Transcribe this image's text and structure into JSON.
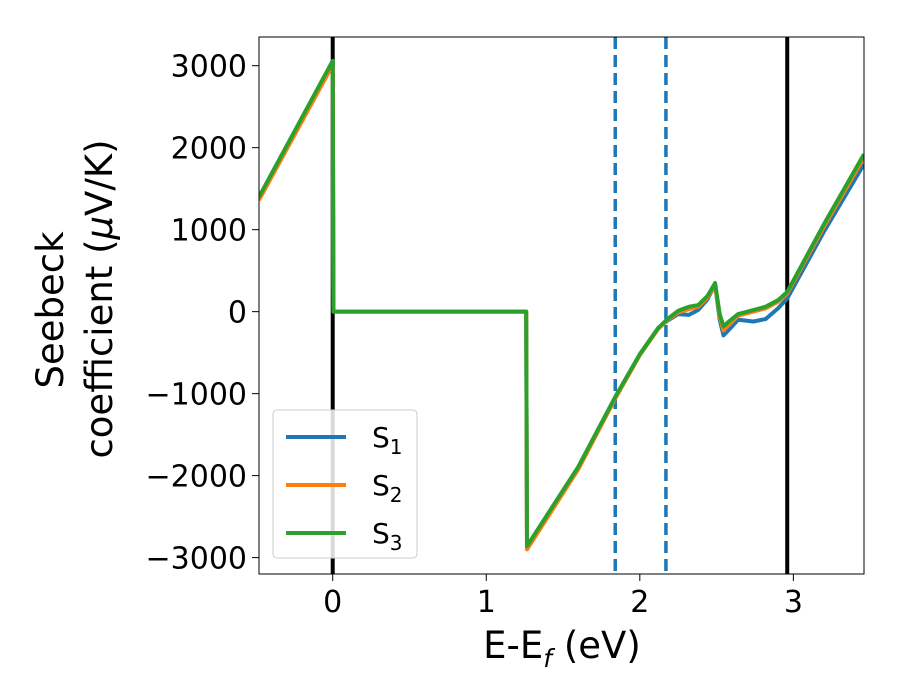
{
  "chart_data": {
    "type": "line",
    "xlabel_main": "E-E",
    "xlabel_sub": "f",
    "xlabel_unit": " (eV)",
    "ylabel_line1": "Seebeck",
    "ylabel_line2_prefix": "coefficient  (",
    "ylabel_mu": "μ",
    "ylabel_line2_suffix": "V/K)",
    "xlim": [
      -0.48,
      3.46
    ],
    "ylim": [
      -3200,
      3350
    ],
    "xticks": [
      0,
      1,
      2,
      3
    ],
    "xtick_labels": [
      "0",
      "1",
      "2",
      "3"
    ],
    "yticks": [
      3000,
      2000,
      1000,
      0,
      -1000,
      -2000,
      -3000
    ],
    "ytick_labels": [
      "3000",
      "2000",
      "1000",
      "0",
      "−1000",
      "−2000",
      "−3000"
    ],
    "legend_position": "lower-left",
    "vlines": [
      {
        "x": 0.0,
        "style": "solid",
        "color": "#000000"
      },
      {
        "x": 2.96,
        "style": "solid",
        "color": "#000000"
      },
      {
        "x": 1.84,
        "style": "dashed",
        "color": "#1f77b4"
      },
      {
        "x": 2.17,
        "style": "dashed",
        "color": "#1f77b4"
      }
    ],
    "series": [
      {
        "name": "S",
        "sub": "1",
        "color": "#1f77b4",
        "points": [
          [
            -0.48,
            1380
          ],
          [
            0.0,
            3030
          ],
          [
            0.005,
            0
          ],
          [
            1.26,
            0
          ],
          [
            1.265,
            -2880
          ],
          [
            1.6,
            -1900
          ],
          [
            1.84,
            -1050
          ],
          [
            2.0,
            -520
          ],
          [
            2.12,
            -200
          ],
          [
            2.18,
            -110
          ],
          [
            2.25,
            -30
          ],
          [
            2.32,
            -40
          ],
          [
            2.38,
            20
          ],
          [
            2.44,
            150
          ],
          [
            2.49,
            330
          ],
          [
            2.52,
            -100
          ],
          [
            2.545,
            -290
          ],
          [
            2.58,
            -220
          ],
          [
            2.64,
            -100
          ],
          [
            2.74,
            -120
          ],
          [
            2.82,
            -90
          ],
          [
            2.9,
            40
          ],
          [
            2.96,
            160
          ],
          [
            3.2,
            980
          ],
          [
            3.46,
            1800
          ]
        ]
      },
      {
        "name": "S",
        "sub": "2",
        "color": "#ff7f0e",
        "points": [
          [
            -0.48,
            1360
          ],
          [
            0.0,
            3010
          ],
          [
            0.005,
            0
          ],
          [
            1.26,
            0
          ],
          [
            1.265,
            -2900
          ],
          [
            1.6,
            -1920
          ],
          [
            1.84,
            -1060
          ],
          [
            2.0,
            -530
          ],
          [
            2.12,
            -210
          ],
          [
            2.18,
            -100
          ],
          [
            2.25,
            -10
          ],
          [
            2.32,
            30
          ],
          [
            2.38,
            60
          ],
          [
            2.44,
            170
          ],
          [
            2.49,
            330
          ],
          [
            2.52,
            -60
          ],
          [
            2.545,
            -230
          ],
          [
            2.58,
            -160
          ],
          [
            2.64,
            -50
          ],
          [
            2.74,
            0
          ],
          [
            2.82,
            40
          ],
          [
            2.9,
            120
          ],
          [
            2.96,
            220
          ],
          [
            3.2,
            1040
          ],
          [
            3.46,
            1880
          ]
        ]
      },
      {
        "name": "S",
        "sub": "3",
        "color": "#2ca02c",
        "points": [
          [
            -0.48,
            1400
          ],
          [
            0.0,
            3060
          ],
          [
            0.005,
            0
          ],
          [
            1.26,
            0
          ],
          [
            1.265,
            -2860
          ],
          [
            1.6,
            -1890
          ],
          [
            1.84,
            -1040
          ],
          [
            2.0,
            -520
          ],
          [
            2.12,
            -200
          ],
          [
            2.18,
            -90
          ],
          [
            2.25,
            10
          ],
          [
            2.32,
            60
          ],
          [
            2.38,
            80
          ],
          [
            2.44,
            190
          ],
          [
            2.49,
            350
          ],
          [
            2.52,
            -30
          ],
          [
            2.545,
            -180
          ],
          [
            2.58,
            -120
          ],
          [
            2.64,
            -30
          ],
          [
            2.74,
            20
          ],
          [
            2.82,
            60
          ],
          [
            2.9,
            140
          ],
          [
            2.96,
            240
          ],
          [
            3.2,
            1070
          ],
          [
            3.46,
            1920
          ]
        ]
      }
    ]
  }
}
